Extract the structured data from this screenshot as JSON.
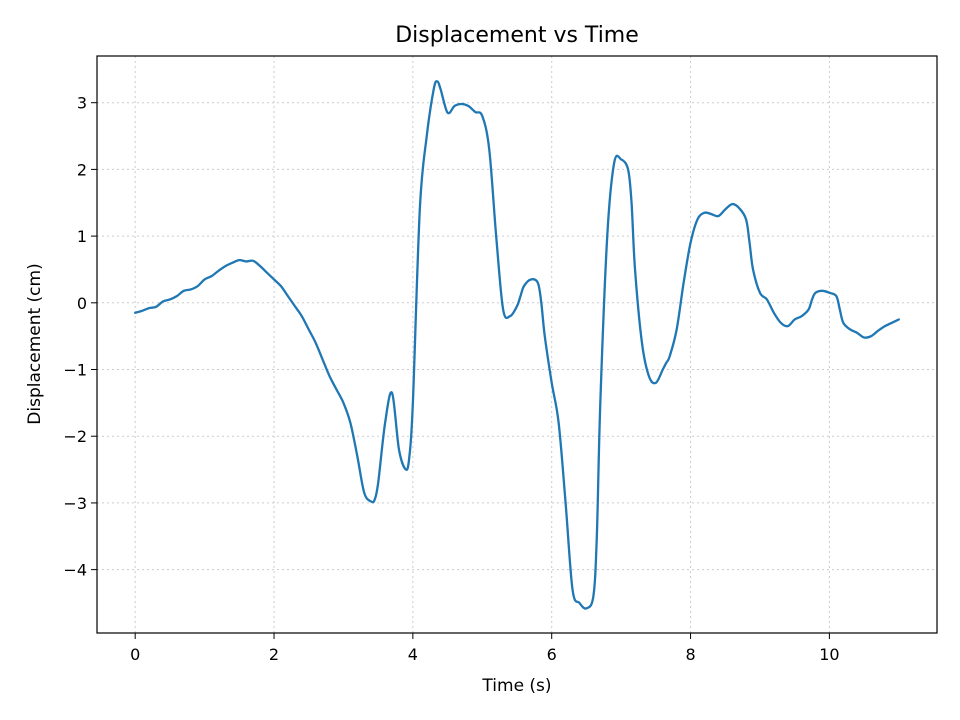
{
  "chart_data": {
    "type": "line",
    "title": "Displacement vs Time",
    "xlabel": "Time (s)",
    "ylabel": "Displacement (cm)",
    "xlim": [
      -0.55,
      11.55
    ],
    "ylim": [
      -4.95,
      3.7
    ],
    "xticks": [
      0,
      2,
      4,
      6,
      8,
      10
    ],
    "xtick_labels": [
      "0",
      "2",
      "4",
      "6",
      "8",
      "10"
    ],
    "yticks": [
      -4,
      -3,
      -2,
      -1,
      0,
      1,
      2,
      3
    ],
    "ytick_labels": [
      "−4",
      "−3",
      "−2",
      "−1",
      "0",
      "1",
      "2",
      "3"
    ],
    "grid": true,
    "line_color": "#1f77b4",
    "series": [
      {
        "x": [
          0.0,
          0.1,
          0.2,
          0.3,
          0.4,
          0.5,
          0.6,
          0.7,
          0.8,
          0.9,
          1.0,
          1.1,
          1.2,
          1.3,
          1.4,
          1.5,
          1.6,
          1.7,
          1.8,
          1.9,
          2.0,
          2.1,
          2.2,
          2.3,
          2.4,
          2.5,
          2.6,
          2.7,
          2.8,
          2.9,
          3.0,
          3.1,
          3.2,
          3.3,
          3.4,
          3.45,
          3.5,
          3.6,
          3.7,
          3.8,
          3.9,
          3.95,
          4.0,
          4.1,
          4.2,
          4.3,
          4.35,
          4.4,
          4.5,
          4.6,
          4.7,
          4.8,
          4.9,
          5.0,
          5.1,
          5.2,
          5.3,
          5.4,
          5.5,
          5.55,
          5.6,
          5.7,
          5.8,
          5.85,
          5.9,
          6.0,
          6.1,
          6.2,
          6.3,
          6.4,
          6.5,
          6.6,
          6.65,
          6.7,
          6.8,
          6.9,
          7.0,
          7.1,
          7.15,
          7.2,
          7.3,
          7.4,
          7.5,
          7.6,
          7.65,
          7.7,
          7.8,
          7.9,
          8.0,
          8.1,
          8.2,
          8.3,
          8.4,
          8.5,
          8.6,
          8.7,
          8.8,
          8.85,
          8.9,
          9.0,
          9.1,
          9.2,
          9.3,
          9.4,
          9.5,
          9.6,
          9.7,
          9.75,
          9.8,
          9.9,
          10.0,
          10.1,
          10.15,
          10.2,
          10.3,
          10.4,
          10.5,
          10.6,
          10.7,
          10.8,
          10.9,
          11.0
        ],
        "y": [
          -0.15,
          -0.12,
          -0.08,
          -0.06,
          0.02,
          0.05,
          0.1,
          0.18,
          0.2,
          0.25,
          0.35,
          0.4,
          0.48,
          0.55,
          0.6,
          0.64,
          0.62,
          0.63,
          0.55,
          0.45,
          0.35,
          0.25,
          0.1,
          -0.05,
          -0.2,
          -0.4,
          -0.6,
          -0.85,
          -1.1,
          -1.3,
          -1.5,
          -1.8,
          -2.3,
          -2.85,
          -2.98,
          -2.95,
          -2.7,
          -1.8,
          -1.35,
          -2.2,
          -2.5,
          -2.3,
          -1.5,
          1.4,
          2.5,
          3.2,
          3.32,
          3.2,
          2.85,
          2.95,
          2.98,
          2.95,
          2.86,
          2.8,
          2.3,
          1.0,
          -0.1,
          -0.2,
          -0.05,
          0.1,
          0.25,
          0.35,
          0.3,
          0.0,
          -0.5,
          -1.2,
          -1.8,
          -3.0,
          -4.3,
          -4.5,
          -4.58,
          -4.4,
          -3.5,
          -1.5,
          1.0,
          2.1,
          2.15,
          2.0,
          1.5,
          0.5,
          -0.6,
          -1.1,
          -1.2,
          -1.0,
          -0.9,
          -0.8,
          -0.4,
          0.3,
          0.9,
          1.25,
          1.35,
          1.33,
          1.3,
          1.4,
          1.48,
          1.42,
          1.25,
          0.9,
          0.5,
          0.15,
          0.05,
          -0.15,
          -0.3,
          -0.35,
          -0.25,
          -0.2,
          -0.1,
          0.05,
          0.15,
          0.18,
          0.15,
          0.1,
          -0.1,
          -0.3,
          -0.4,
          -0.45,
          -0.52,
          -0.5,
          -0.42,
          -0.35,
          -0.3,
          -0.25
        ]
      }
    ]
  }
}
